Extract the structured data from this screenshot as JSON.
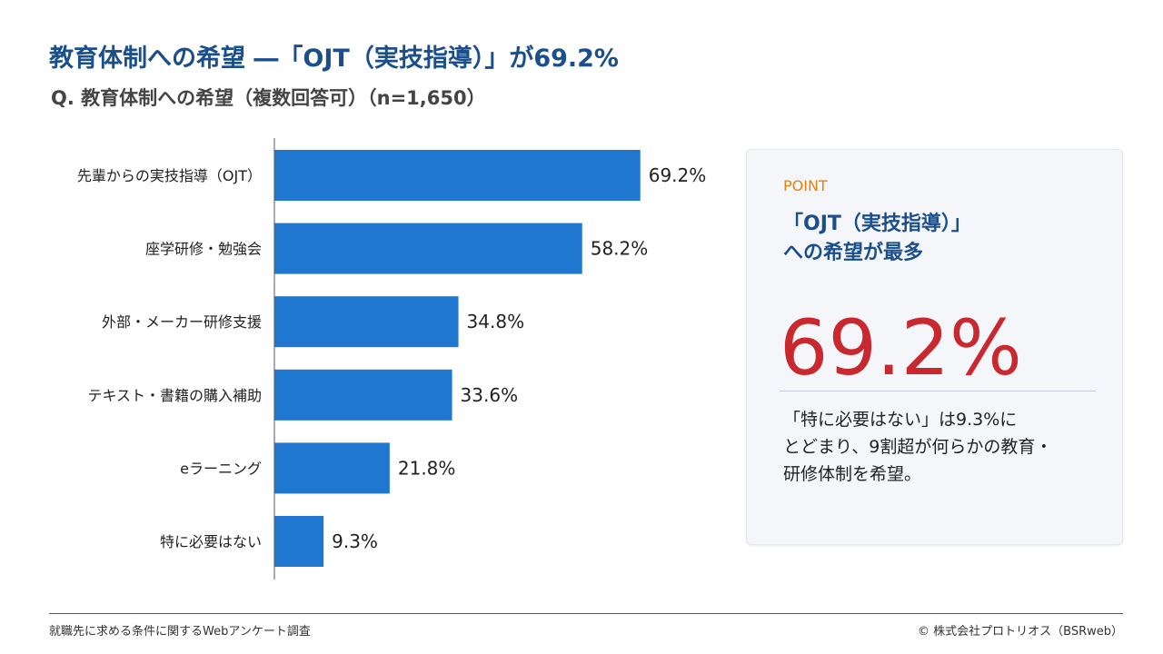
{
  "header": {
    "title": "教育体制への希望 ―「OJT（実技指導）」が69.2%",
    "subtitle": "Q. 教育体制への希望（複数回答可）（n=1,650）"
  },
  "chart_data": {
    "type": "bar",
    "orientation": "horizontal",
    "categories": [
      "先輩からの実技指導（OJT）",
      "座学研修・勉強会",
      "外部・メーカー研修支援",
      "テキスト・書籍の購入補助",
      "eラーニング",
      "特に必要はない"
    ],
    "values": [
      69.2,
      58.2,
      34.8,
      33.6,
      21.8,
      9.3
    ],
    "value_labels": [
      "69.2%",
      "58.2%",
      "34.8%",
      "33.6%",
      "21.8%",
      "9.3%"
    ],
    "xlim": [
      0,
      100
    ],
    "bar_color": "#1f77d0",
    "grid": false,
    "legend": "none"
  },
  "point": {
    "label": "POINT",
    "heading_line1": "「OJT（実技指導）」",
    "heading_line2": "への希望が最多",
    "big_value": "69.2%",
    "body_line1": "「特に必要はない」は9.3%に",
    "body_line2": "とどまり、9割超が何らかの教育・",
    "body_line3": "研修体制を希望。"
  },
  "footer": {
    "source": "就職先に求める条件に関するWebアンケート調査",
    "copyright": "©  株式会社プロトリオス（BSRweb）"
  },
  "colors": {
    "title": "#1a4f8b",
    "accent_orange": "#e8800a",
    "highlight_red": "#c8282e",
    "bar": "#1f77d0"
  }
}
